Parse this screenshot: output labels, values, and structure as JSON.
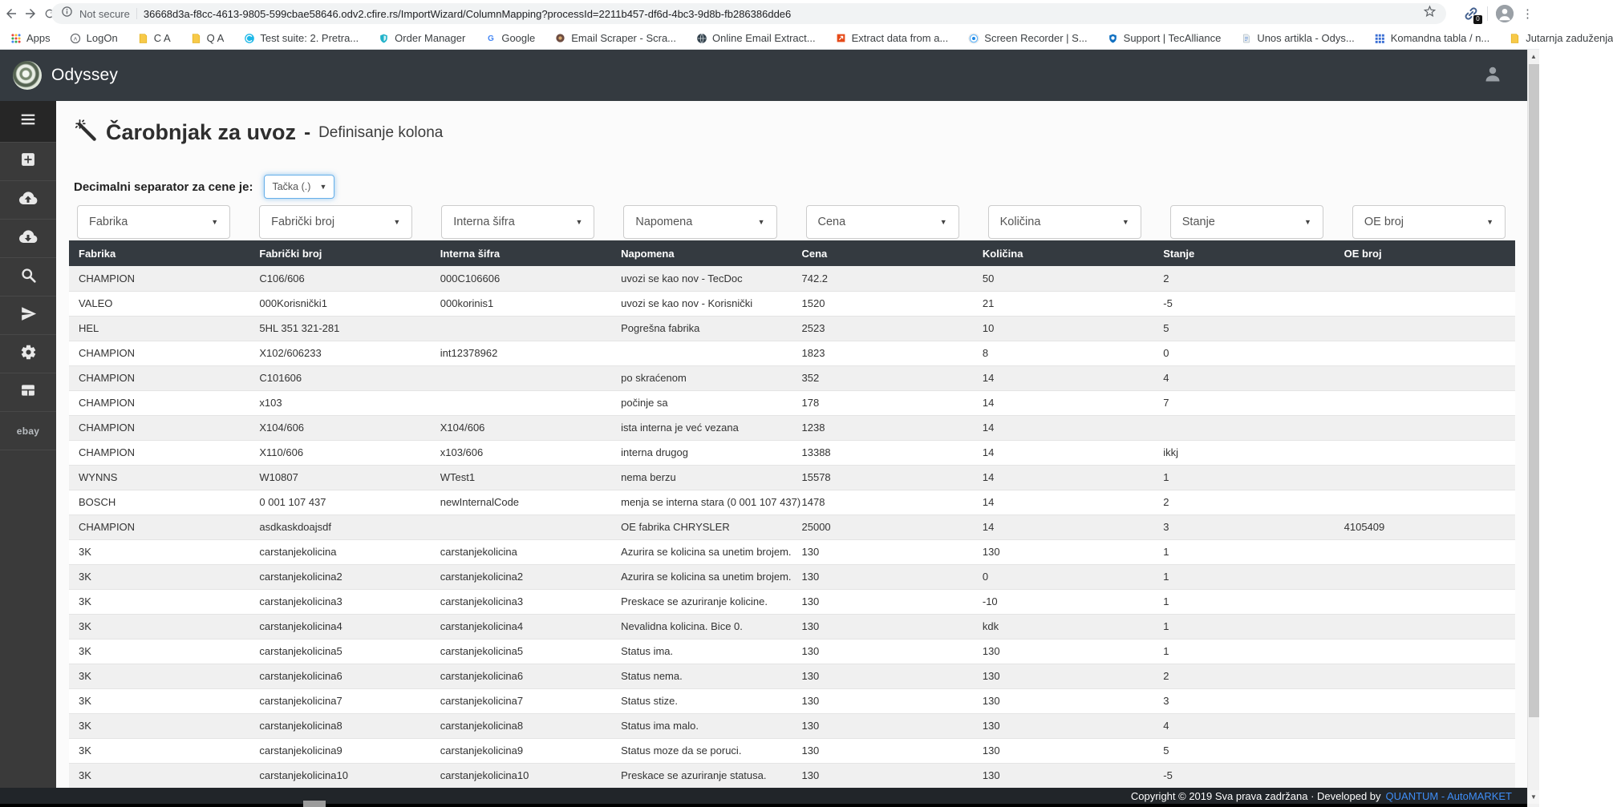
{
  "browser": {
    "security_label": "Not secure",
    "url": "36668d3a-f8cc-4613-9805-599cbae58646.odv2.cfire.rs/ImportWizard/ColumnMapping?processId=2211b457-df6d-4bc3-9d8b-fb286386dde6",
    "extension_badge": "0",
    "bookmarks": [
      {
        "label": "Apps",
        "icon": "apps-grid"
      },
      {
        "label": "LogOn",
        "icon": "circle-a"
      },
      {
        "label": "C A",
        "icon": "folder-yellow"
      },
      {
        "label": "Q A",
        "icon": "folder-yellow"
      },
      {
        "label": "Test suite: 2. Pretra...",
        "icon": "blue-circle"
      },
      {
        "label": "Order Manager",
        "icon": "shield-teal"
      },
      {
        "label": "Google",
        "icon": "google-g"
      },
      {
        "label": "Email Scraper - Scra...",
        "icon": "brown-dot"
      },
      {
        "label": "Online Email Extract...",
        "icon": "globe-dark"
      },
      {
        "label": "Extract data from a...",
        "icon": "red-arrow"
      },
      {
        "label": "Screen Recorder | S...",
        "icon": "record-dot"
      },
      {
        "label": "Support | TecAlliance",
        "icon": "shield-blue"
      },
      {
        "label": "Unos artikla - Odys...",
        "icon": "page-gray"
      },
      {
        "label": "Komandna tabla / n...",
        "icon": "grid-blue"
      },
      {
        "label": "Jutarnja zaduženja",
        "icon": "folder-yellow"
      }
    ]
  },
  "navbar": {
    "brand": "Odyssey"
  },
  "sidebar": {
    "items": [
      {
        "name": "menu",
        "icon": "menu",
        "active": true
      },
      {
        "name": "add",
        "icon": "plus-square"
      },
      {
        "name": "upload",
        "icon": "cloud-upload"
      },
      {
        "name": "download",
        "icon": "cloud-download"
      },
      {
        "name": "search",
        "icon": "search"
      },
      {
        "name": "send",
        "icon": "send"
      },
      {
        "name": "settings",
        "icon": "gear"
      },
      {
        "name": "table",
        "icon": "table-grid"
      },
      {
        "name": "ebay",
        "icon": "ebay-logo",
        "label": "ebay"
      }
    ]
  },
  "page": {
    "title": "Čarobnjak za uvoz",
    "title_dash": "-",
    "subtitle": "Definisanje kolona",
    "separator_label": "Decimalni separator za cene je:",
    "separator_value": "Tačka (.)"
  },
  "column_selects": [
    "Fabrika",
    "Fabrički broj",
    "Interna šifra",
    "Napomena",
    "Cena",
    "Količina",
    "Stanje",
    "OE broj"
  ],
  "table": {
    "headers": [
      "Fabrika",
      "Fabrički broj",
      "Interna šifra",
      "Napomena",
      "Cena",
      "Količina",
      "Stanje",
      "OE broj"
    ],
    "rows": [
      [
        "CHAMPION",
        "C106/606",
        "000C106606",
        "uvozi se kao nov - TecDoc",
        "742.2",
        "50",
        "2",
        ""
      ],
      [
        "VALEO",
        "000Korisnički1",
        "000korinis1",
        "uvozi se kao nov - Korisnički",
        "1520",
        "21",
        "-5",
        ""
      ],
      [
        "HEL",
        "5HL 351 321-281",
        "",
        "Pogrešna fabrika",
        "2523",
        "10",
        "5",
        ""
      ],
      [
        "CHAMPION",
        "X102/606233",
        "int12378962",
        "",
        "1823",
        "8",
        "0",
        ""
      ],
      [
        "CHAMPION",
        "C101606",
        "",
        "po skraćenom",
        "352",
        "14",
        "4",
        ""
      ],
      [
        "CHAMPION",
        "x103",
        "",
        "počinje sa",
        "178",
        "14",
        "7",
        ""
      ],
      [
        "CHAMPION",
        "X104/606",
        "X104/606",
        "ista interna je već vezana",
        "1238",
        "14",
        "",
        ""
      ],
      [
        "CHAMPION",
        "X110/606",
        "x103/606",
        "interna drugog",
        "13388",
        "14",
        "ikkj",
        ""
      ],
      [
        "WYNNS",
        "W10807",
        "WTest1",
        "nema berzu",
        "15578",
        "14",
        "1",
        ""
      ],
      [
        "BOSCH",
        "0 001 107 437",
        "newInternalCode",
        "menja se interna stara (0 001 107 437)",
        "1478",
        "14",
        "2",
        ""
      ],
      [
        "CHAMPION",
        "asdkaskdoajsdf",
        "",
        "OE fabrika CHRYSLER",
        "25000",
        "14",
        "3",
        "4105409"
      ],
      [
        "3K",
        "carstanjekolicina",
        "carstanjekolicina",
        "Azurira se kolicina sa unetim brojem.",
        "130",
        "130",
        "1",
        ""
      ],
      [
        "3K",
        "carstanjekolicina2",
        "carstanjekolicina2",
        "Azurira se kolicina sa unetim brojem.",
        "130",
        "0",
        "1",
        ""
      ],
      [
        "3K",
        "carstanjekolicina3",
        "carstanjekolicina3",
        "Preskace se azuriranje kolicine.",
        "130",
        "-10",
        "1",
        ""
      ],
      [
        "3K",
        "carstanjekolicina4",
        "carstanjekolicina4",
        "Nevalidna kolicina. Bice 0.",
        "130",
        "kdk",
        "1",
        ""
      ],
      [
        "3K",
        "carstanjekolicina5",
        "carstanjekolicina5",
        "Status ima.",
        "130",
        "130",
        "1",
        ""
      ],
      [
        "3K",
        "carstanjekolicina6",
        "carstanjekolicina6",
        "Status nema.",
        "130",
        "130",
        "2",
        ""
      ],
      [
        "3K",
        "carstanjekolicina7",
        "carstanjekolicina7",
        "Status stize.",
        "130",
        "130",
        "3",
        ""
      ],
      [
        "3K",
        "carstanjekolicina8",
        "carstanjekolicina8",
        "Status ima malo.",
        "130",
        "130",
        "4",
        ""
      ],
      [
        "3K",
        "carstanjekolicina9",
        "carstanjekolicina9",
        "Status moze da se poruci.",
        "130",
        "130",
        "5",
        ""
      ],
      [
        "3K",
        "carstanjekolicina10",
        "carstanjekolicina10",
        "Preskace se azuriranje statusa.",
        "130",
        "130",
        "-5",
        ""
      ]
    ]
  },
  "footer": {
    "copyright": "Copyright © 2019 Sva prava zadržana · Developed by",
    "link": "QUANTUM - AutoMARKET"
  },
  "colors": {
    "navbar": "#343a40",
    "table_header": "#343a40",
    "footer": "#212529",
    "footer_link": "#3f8ef7",
    "focus_ring": "#66afe9"
  }
}
